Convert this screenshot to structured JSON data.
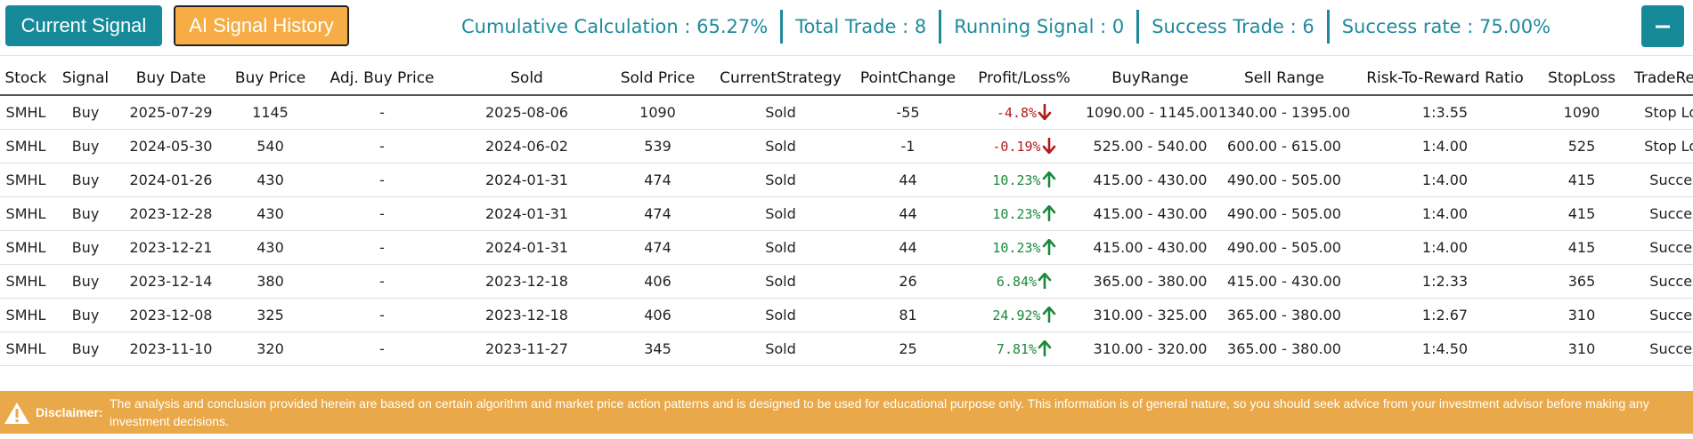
{
  "toolbar": {
    "current_signal_label": "Current Signal",
    "history_label": "AI Signal History",
    "collapse_icon": "minus-icon"
  },
  "stats": {
    "cumulative": "Cumulative Calculation :  65.27%",
    "total_trade": "Total Trade :  8",
    "running_signal": "Running Signal :  0",
    "success_trade": "Success Trade :  6",
    "success_rate": "Success rate :  75.00%"
  },
  "table": {
    "headers": [
      "Stock",
      "Signal",
      "Buy Date",
      "Buy Price",
      "Adj. Buy Price",
      "Sold",
      "Sold Price",
      "CurrentStrategy",
      "PointChange",
      "Profit/Loss%",
      "BuyRange",
      "Sell Range",
      "Risk-To-Reward Ratio",
      "StopLoss",
      "TradeResult"
    ],
    "rows": [
      {
        "stock": "SMHL",
        "signal": "Buy",
        "buy_date": "2025-07-29",
        "buy_price": "1145",
        "adj_buy_price": "-",
        "sold": "2025-08-06",
        "sold_price": "1090",
        "strategy": "Sold",
        "point_change": "-55",
        "pl": "-4.8%",
        "direction": "down",
        "buy_range": "1090.00 - 1145.00",
        "sell_range": "1340.00 - 1395.00",
        "rr": "1:3.55",
        "stop_loss": "1090",
        "result": "Stop Loss"
      },
      {
        "stock": "SMHL",
        "signal": "Buy",
        "buy_date": "2024-05-30",
        "buy_price": "540",
        "adj_buy_price": "-",
        "sold": "2024-06-02",
        "sold_price": "539",
        "strategy": "Sold",
        "point_change": "-1",
        "pl": "-0.19%",
        "direction": "down",
        "buy_range": "525.00 - 540.00",
        "sell_range": "600.00 - 615.00",
        "rr": "1:4.00",
        "stop_loss": "525",
        "result": "Stop Loss"
      },
      {
        "stock": "SMHL",
        "signal": "Buy",
        "buy_date": "2024-01-26",
        "buy_price": "430",
        "adj_buy_price": "-",
        "sold": "2024-01-31",
        "sold_price": "474",
        "strategy": "Sold",
        "point_change": "44",
        "pl": "10.23%",
        "direction": "up",
        "buy_range": "415.00 - 430.00",
        "sell_range": "490.00 - 505.00",
        "rr": "1:4.00",
        "stop_loss": "415",
        "result": "Success"
      },
      {
        "stock": "SMHL",
        "signal": "Buy",
        "buy_date": "2023-12-28",
        "buy_price": "430",
        "adj_buy_price": "-",
        "sold": "2024-01-31",
        "sold_price": "474",
        "strategy": "Sold",
        "point_change": "44",
        "pl": "10.23%",
        "direction": "up",
        "buy_range": "415.00 - 430.00",
        "sell_range": "490.00 - 505.00",
        "rr": "1:4.00",
        "stop_loss": "415",
        "result": "Success"
      },
      {
        "stock": "SMHL",
        "signal": "Buy",
        "buy_date": "2023-12-21",
        "buy_price": "430",
        "adj_buy_price": "-",
        "sold": "2024-01-31",
        "sold_price": "474",
        "strategy": "Sold",
        "point_change": "44",
        "pl": "10.23%",
        "direction": "up",
        "buy_range": "415.00 - 430.00",
        "sell_range": "490.00 - 505.00",
        "rr": "1:4.00",
        "stop_loss": "415",
        "result": "Success"
      },
      {
        "stock": "SMHL",
        "signal": "Buy",
        "buy_date": "2023-12-14",
        "buy_price": "380",
        "adj_buy_price": "-",
        "sold": "2023-12-18",
        "sold_price": "406",
        "strategy": "Sold",
        "point_change": "26",
        "pl": "6.84%",
        "direction": "up",
        "buy_range": "365.00 - 380.00",
        "sell_range": "415.00 - 430.00",
        "rr": "1:2.33",
        "stop_loss": "365",
        "result": "Success"
      },
      {
        "stock": "SMHL",
        "signal": "Buy",
        "buy_date": "2023-12-08",
        "buy_price": "325",
        "adj_buy_price": "-",
        "sold": "2023-12-18",
        "sold_price": "406",
        "strategy": "Sold",
        "point_change": "81",
        "pl": "24.92%",
        "direction": "up",
        "buy_range": "310.00 - 325.00",
        "sell_range": "365.00 - 380.00",
        "rr": "1:2.67",
        "stop_loss": "310",
        "result": "Success"
      },
      {
        "stock": "SMHL",
        "signal": "Buy",
        "buy_date": "2023-11-10",
        "buy_price": "320",
        "adj_buy_price": "-",
        "sold": "2023-11-27",
        "sold_price": "345",
        "strategy": "Sold",
        "point_change": "25",
        "pl": "7.81%",
        "direction": "up",
        "buy_range": "310.00 - 320.00",
        "sell_range": "365.00 - 380.00",
        "rr": "1:4.50",
        "stop_loss": "310",
        "result": "Success"
      }
    ]
  },
  "disclaimer": {
    "label": "Disclaimer:",
    "text": "The analysis and conclusion provided herein are based on certain algorithm and market price action patterns and is designed to be used for educational purpose only. This information is of general nature, so you should seek advice from your investment advisor before making any investment decisions.",
    "icon": "warning-icon"
  },
  "colors": {
    "teal": "#178a9a",
    "orange": "#f6ad45",
    "profit": "#1a8a3a",
    "loss": "#b11c1c",
    "disclaimer_bg": "#e9a849"
  }
}
